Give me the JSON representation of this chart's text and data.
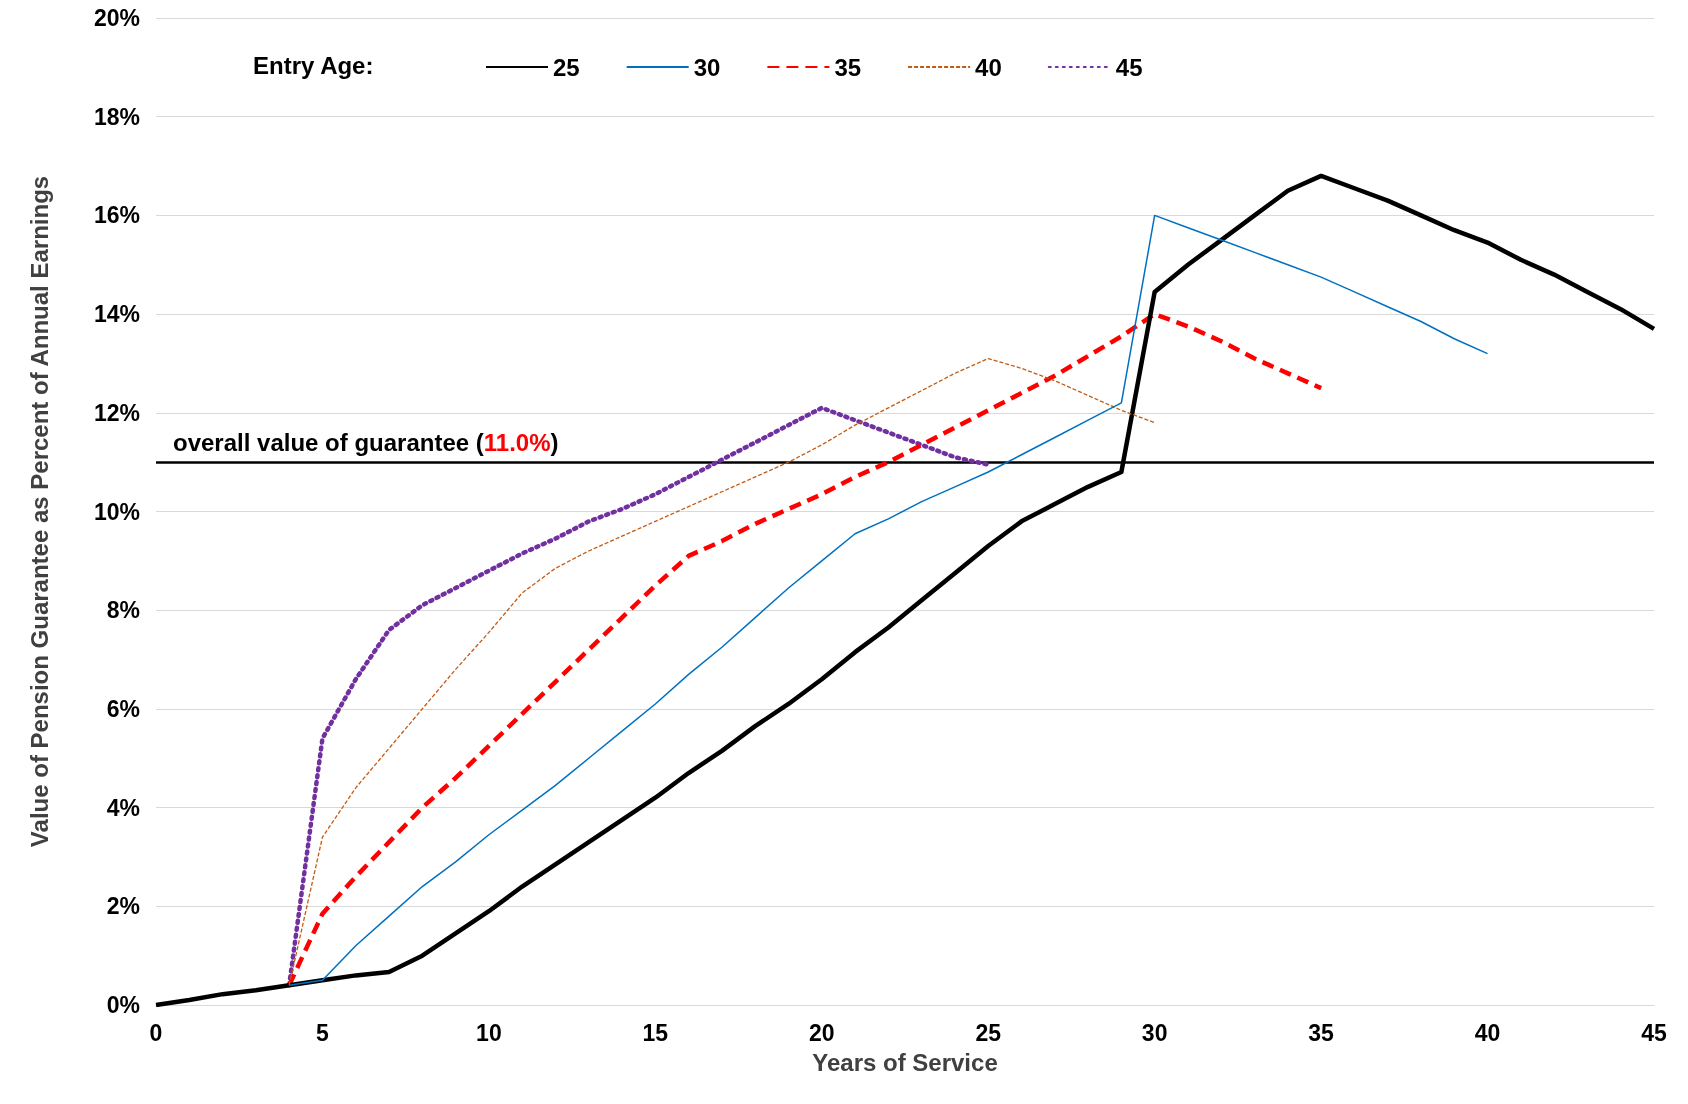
{
  "chart_data": {
    "type": "line",
    "xlabel": "Years of Service",
    "ylabel": "Value of Pension Guarantee as Percent of Annual Earnings",
    "legend_title": "Entry Age:",
    "legend": "top left",
    "grid": "y",
    "marker": "none",
    "xlim": [
      0,
      45
    ],
    "xticks": [
      0,
      5,
      10,
      15,
      20,
      25,
      30,
      35,
      40,
      45
    ],
    "ylim": [
      0,
      20
    ],
    "yticks": [
      {
        "value": 0,
        "label": "0%"
      },
      {
        "value": 2,
        "label": "2%"
      },
      {
        "value": 4,
        "label": "4%"
      },
      {
        "value": 6,
        "label": "6%"
      },
      {
        "value": 8,
        "label": "8%"
      },
      {
        "value": 10,
        "label": "10%"
      },
      {
        "value": 12,
        "label": "12%"
      },
      {
        "value": 14,
        "label": "14%"
      },
      {
        "value": 16,
        "label": "16%"
      },
      {
        "value": 18,
        "label": "18%"
      },
      {
        "value": 20,
        "label": "20%"
      }
    ],
    "ref_lines": [
      {
        "axis": "y",
        "value": 11,
        "label": "overall value of guarantee (11.0%)",
        "color": "#000000"
      }
    ],
    "series": [
      {
        "name": "25",
        "color": "#000000",
        "line_style": "solid",
        "x": [
          0,
          1,
          2,
          3,
          4,
          5,
          6,
          7,
          8,
          9,
          10,
          11,
          12,
          13,
          14,
          15,
          16,
          17,
          18,
          19,
          20,
          21,
          22,
          23,
          24,
          25,
          26,
          27,
          28,
          29,
          30,
          31,
          32,
          33,
          34,
          35,
          36,
          37,
          38,
          39,
          40,
          41,
          42,
          43,
          44,
          45
        ],
        "values": [
          0,
          0.1,
          0.22,
          0.3,
          0.4,
          0.5,
          0.6,
          0.67,
          1.0,
          1.45,
          1.9,
          2.4,
          2.85,
          3.3,
          3.75,
          4.2,
          4.7,
          5.15,
          5.65,
          6.1,
          6.6,
          7.15,
          7.65,
          8.2,
          8.75,
          9.3,
          9.8,
          10.15,
          10.5,
          10.8,
          14.45,
          15.0,
          15.5,
          16.0,
          16.5,
          16.8,
          16.55,
          16.3,
          16.0,
          15.7,
          15.45,
          15.1,
          14.8,
          14.45,
          14.1,
          13.7
        ]
      },
      {
        "name": "30",
        "color": "#0070c0",
        "line_style": "solid",
        "x": [
          4,
          5,
          6,
          7,
          8,
          9,
          10,
          11,
          12,
          13,
          14,
          15,
          16,
          17,
          18,
          19,
          20,
          21,
          22,
          23,
          24,
          25,
          26,
          27,
          28,
          29,
          30,
          31,
          32,
          33,
          34,
          35,
          36,
          37,
          38,
          39,
          40
        ],
        "values": [
          0.4,
          0.5,
          1.2,
          1.8,
          2.4,
          2.9,
          3.45,
          3.95,
          4.45,
          5.0,
          5.55,
          6.1,
          6.7,
          7.25,
          7.85,
          8.45,
          9.0,
          9.55,
          9.85,
          10.2,
          10.5,
          10.8,
          11.15,
          11.5,
          11.85,
          12.2,
          16.0,
          15.75,
          15.5,
          15.25,
          15.0,
          14.75,
          14.45,
          14.15,
          13.85,
          13.5,
          13.2
        ]
      },
      {
        "name": "35",
        "color": "#ff0000",
        "line_style": "dashed",
        "x": [
          4,
          5,
          6,
          7,
          8,
          9,
          10,
          11,
          12,
          13,
          14,
          15,
          16,
          17,
          18,
          19,
          20,
          21,
          22,
          23,
          24,
          25,
          26,
          27,
          28,
          29,
          30,
          31,
          32,
          33,
          34,
          35
        ],
        "values": [
          0.4,
          1.85,
          2.6,
          3.3,
          4.0,
          4.6,
          5.25,
          5.9,
          6.55,
          7.2,
          7.85,
          8.5,
          9.1,
          9.4,
          9.75,
          10.05,
          10.35,
          10.7,
          11.0,
          11.35,
          11.7,
          12.05,
          12.4,
          12.75,
          13.15,
          13.55,
          14.0,
          13.75,
          13.45,
          13.1,
          12.8,
          12.5
        ]
      },
      {
        "name": "40",
        "color": "#c55a11",
        "line_style": "dashed",
        "x": [
          4,
          5,
          6,
          7,
          8,
          9,
          10,
          11,
          12,
          13,
          14,
          15,
          16,
          17,
          18,
          19,
          20,
          21,
          22,
          23,
          24,
          25,
          26,
          27,
          28,
          29,
          30
        ],
        "values": [
          0.4,
          3.4,
          4.4,
          5.2,
          6.0,
          6.8,
          7.55,
          8.35,
          8.85,
          9.2,
          9.5,
          9.8,
          10.1,
          10.4,
          10.7,
          11.0,
          11.35,
          11.75,
          12.1,
          12.45,
          12.8,
          13.1,
          12.9,
          12.65,
          12.35,
          12.05,
          11.8
        ]
      },
      {
        "name": "45",
        "color": "#7030a0",
        "line_style": "dotted",
        "x": [
          4,
          5,
          6,
          7,
          8,
          9,
          10,
          11,
          12,
          13,
          14,
          15,
          16,
          17,
          18,
          19,
          20,
          21,
          22,
          23,
          24,
          25
        ],
        "values": [
          0.4,
          5.4,
          6.6,
          7.6,
          8.1,
          8.45,
          8.8,
          9.15,
          9.45,
          9.8,
          10.05,
          10.35,
          10.7,
          11.05,
          11.4,
          11.75,
          12.1,
          11.85,
          11.6,
          11.35,
          11.1,
          10.95
        ]
      }
    ]
  }
}
